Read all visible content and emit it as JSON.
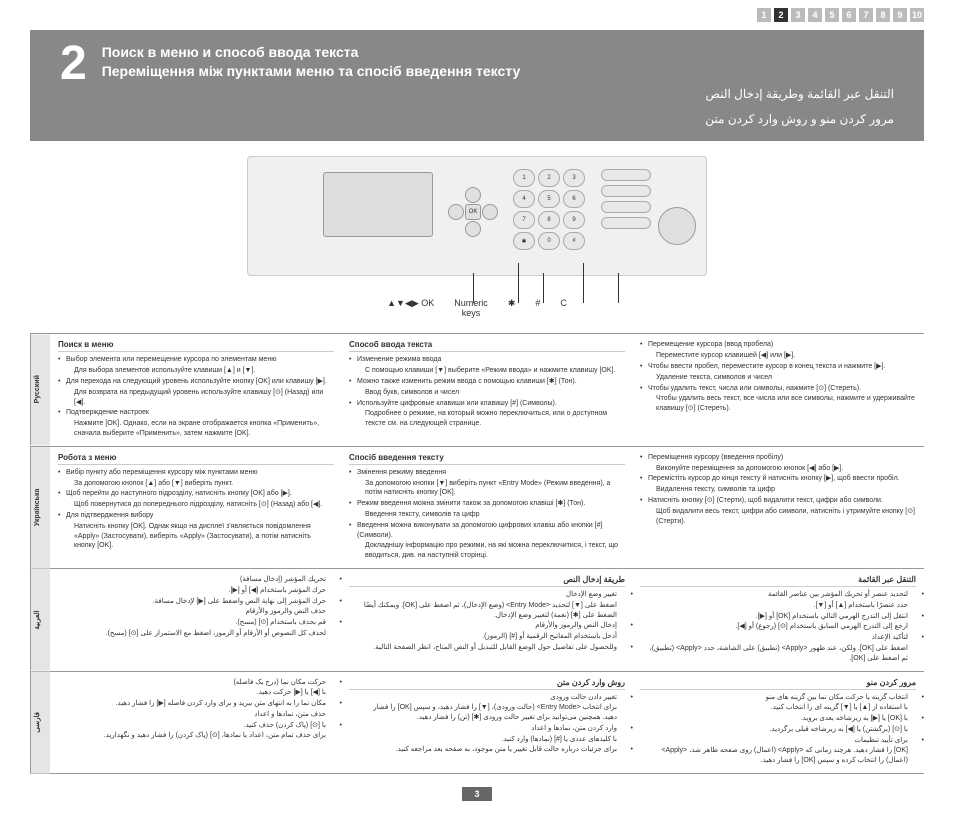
{
  "pageNumbers": [
    "1",
    "2",
    "3",
    "4",
    "5",
    "6",
    "7",
    "8",
    "9",
    "10"
  ],
  "activePage": 1,
  "chapterNum": "2",
  "titles": {
    "ru": "Поиск в меню и способ ввода текста",
    "uk": "Переміщення між пунктами меню та спосіб введення тексту",
    "ar": "التنقل عبر القائمة وطريقة إدخال النص",
    "fa": "مرور کردن منو و روش وارد کردن متن"
  },
  "keyLabels": {
    "arrows": "▲▼◀▶ OK",
    "numeric": "Numeric\nkeys",
    "star": "✱",
    "hash": "#",
    "c": "C"
  },
  "sections": {
    "ru": {
      "tab": "Русский",
      "col1": {
        "h": "Поиск в меню",
        "items": [
          "Выбор элемента или перемещение курсора по элементам меню",
          "Для выбора элементов используйте клавиши [▲] и [▼].",
          "Для перехода на следующий уровень используйте кнопку [OK] или клавишу [▶].",
          "Для возврата на предыдущий уровень используйте клавишу [⊙] (Назад) или [◀].",
          "Подтверждение настроек",
          "Нажмите [OK]. Однако, если на экране отображается кнопка «Применить», сначала выберите «Применить», затем нажмите [OK]."
        ]
      },
      "col2": {
        "h": "Способ ввода текста",
        "items": [
          "Изменение режима ввода",
          "С помощью клавиши [▼] выберите «Режим ввода» и нажмите клавишу [OK].",
          "Можно также изменить режим ввода с помощью клавиши [✱] (Тон).",
          "Ввод букв, символов и чисел",
          "Используйте цифровые клавиши или клавишу [#] (Символы).",
          "Подробнее о режиме, на который можно переключиться, или о доступном тексте см. на следующей странице."
        ]
      },
      "col3": {
        "h": "",
        "items": [
          "Перемещение курсора (ввод пробела)",
          "Переместите курсор клавишей [◀] или [▶].",
          "Чтобы ввести пробел, переместите курсор в конец текста и нажмите [▶].",
          "Удаление текста, символов и чисел",
          "Чтобы удалить текст, числа или символы, нажмите [⊙] (Стереть).",
          "Чтобы удалить весь текст, все числа или все символы, нажмите и удерживайте клавишу [⊙] (Стереть)."
        ]
      }
    },
    "uk": {
      "tab": "Українська",
      "col1": {
        "h": "Робота з меню",
        "items": [
          "Вибір пункту або переміщення курсору між пунктами меню",
          "За допомогою кнопок [▲] або [▼] виберіть пункт.",
          "Щоб перейти до наступного підрозділу, натисніть кнопку [OK] або [▶].",
          "Щоб повернутися до попереднього підрозділу, натисніть [⊙] (Назад) або [◀].",
          "Для підтвердження вибору",
          "Натисніть кнопку [OK]. Однак якщо на дисплеї з'являється повідомлення «Apply» (Застосувати), виберіть «Apply» (Застосувати), а потім натисніть кнопку [OK]."
        ]
      },
      "col2": {
        "h": "Спосіб введення тексту",
        "items": [
          "Змінення режиму введення",
          "За допомогою кнопки [▼] виберіть пункт «Entry Mode» (Режим введення), а потім натисніть кнопку [OK].",
          "Режим введення можна змінити також за допомогою клавіші [✱] (Тон).",
          "Введення тексту, символів та цифр",
          "Введення можна виконувати за допомогою цифрових клавіш або кнопки [#] (Символи).",
          "Докладнішу інформацію про режими, на які можна переключитися, і текст, що вводиться, див. на наступній сторінці."
        ]
      },
      "col3": {
        "h": "",
        "items": [
          "Переміщення курсору (введення пробілу)",
          "Виконуйте переміщення за допомогою кнопок [◀] або [▶].",
          "Перемістіть курсор до кінця тексту й натисніть кнопку [▶], щоб ввести пробіл.",
          "Видалення тексту, символів та цифр",
          "Натисніть кнопку [⊙] (Стерти), щоб видалити текст, цифри або символи.",
          "Щоб видалити весь текст, цифри або символи, натисніть і утримуйте кнопку [⊙] (Стерти)."
        ]
      }
    },
    "ar": {
      "tab": "العربية",
      "col1": {
        "h": "التنقل عبر القائمة",
        "items": [
          "لتحديد عنصر أو تحريك المؤشر بين عناصر القائمة",
          "حدد عنصرًا باستخدام [▲] أو [▼].",
          "انتقل إلى التدرج الهرمي التالي باستخدام [OK] أو [▶].",
          "ارجع إلى التدرج الهرمي السابق باستخدام [⊙] (رجوع) أو [◀].",
          "لتأكيد الإعداد",
          "اضغط على [OK]. ولكن، عند ظهور <Apply> (تطبيق) على الشاشة، حدد <Apply> (تطبيق)، ثم اضغط على [OK]."
        ]
      },
      "col2": {
        "h": "طريقة إدخال النص",
        "items": [
          "تغيير وضع الإدخال",
          "اضغط على [▼] لتحديد <Entry Mode> (وضع الإدخال)، ثم اضغط على [OK]. ويمكنك أيضًا الضغط على [✱] (نغمة) لتغيير وضع الإدخال.",
          "إدخال النص والرموز والأرقام",
          "أدخل باستخدام المفاتيح الرقمية أو [#] (الرموز).",
          "وللحصول على تفاصيل حول الوضع القابل للتبديل أو النص المتاح، انظر الصفحة التالية."
        ]
      },
      "col3": {
        "h": "",
        "items": [
          "تحريك المؤشر (إدخال مسافة)",
          "حرك المؤشر باستخدام [◀] أو [▶].",
          "حرك المؤشر إلى نهاية النص واضغط على [▶] لإدخال مسافة.",
          "حذف النص والرموز والأرقام",
          "قم بحذف باستخدام [⊙] (مسح).",
          "لحذف كل النصوص أو الأرقام أو الرموز، اضغط مع الاستمرار على [⊙] (مسح)."
        ]
      }
    },
    "fa": {
      "tab": "فارسی",
      "col1": {
        "h": "مرور کردن منو",
        "items": [
          "انتخاب گزینه یا حرکت مکان نما بین گزینه های منو",
          "با استفاده از [▲] یا [▼] گزینه ای را انتخاب کنید.",
          "با [OK] یا [▶] به زیرشاخه بعدی بروید.",
          "با [⊙] (برگشتن) یا [◀] به زیرشاخه قبلی برگردید.",
          "برای تأیید تنظیمات",
          "[OK] را فشار دهید. هرچند زمانی که <Apply> (اعمال) روی صفحه ظاهر شد، <Apply> (اعمال) را انتخاب کرده و سپس [OK] را فشار دهید."
        ]
      },
      "col2": {
        "h": "روش وارد کردن متن",
        "items": [
          "تغییر دادن حالت ورودی",
          "برای انتخاب <Entry Mode> (حالت ورودی)، [▼] را فشار دهید، و سپس [OK] را فشار دهید. همچنین می‌توانید برای تغییر حالت ورودی [✱] (تن) را فشار دهید.",
          "وارد کردن متن، نمادها و اعداد",
          "با کلیدهای عددی یا [#] (نمادها) وارد کنید.",
          "برای جزئیات درباره حالت قابل تغییر یا متن موجود، به صفحه بعد مراجعه کنید."
        ]
      },
      "col3": {
        "h": "",
        "items": [
          "حرکت مکان نما (درج یک فاصله)",
          "با [◀] یا [▶] حرکت دهید.",
          "مکان نما را به انتهای متن ببرید و برای وارد کردن فاصله [▶] را فشار دهید.",
          "حذف متن، نمادها و اعداد",
          "با [⊙] (پاک کردن) حذف کنید.",
          "برای حذف تمام متن، اعداد یا نمادها، [⊙] (پاک کردن) را فشار دهید و نگهدارید."
        ]
      }
    }
  },
  "footerPage": "3"
}
